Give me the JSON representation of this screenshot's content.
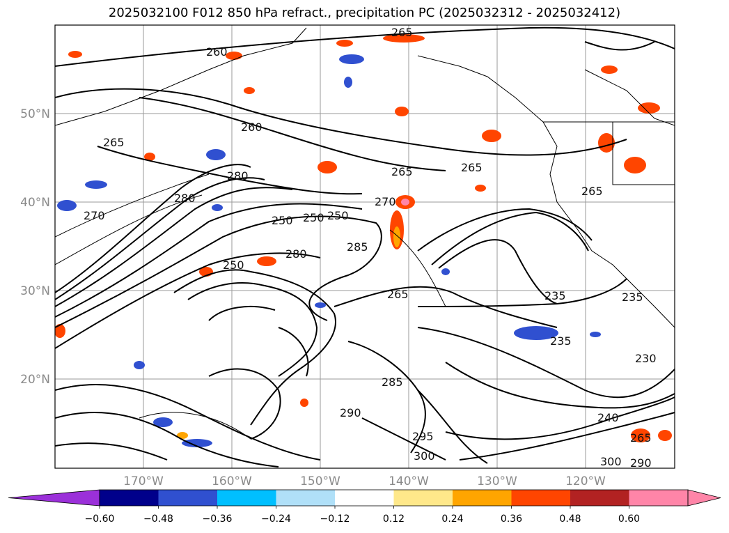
{
  "title": "2025032100 F012 850 hPa refract., precipitation PC (2025032312 - 2025032412)",
  "map": {
    "lat_ticks": [
      "50°N",
      "40°N",
      "30°N",
      "20°N"
    ],
    "lon_ticks": [
      "170°W",
      "160°W",
      "150°W",
      "140°W",
      "130°W",
      "120°W"
    ],
    "contour_labels": [
      "260",
      "265",
      "260",
      "265",
      "250",
      "280",
      "280",
      "270",
      "250",
      "250",
      "270",
      "285",
      "265",
      "265",
      "265",
      "235",
      "235",
      "285",
      "290",
      "295",
      "300",
      "240",
      "265",
      "230",
      "290",
      "300",
      "250",
      "235",
      "265",
      "280"
    ]
  },
  "colorbar": {
    "ticks": [
      "−0.60",
      "−0.48",
      "−0.36",
      "−0.24",
      "−0.12",
      "0.12",
      "0.24",
      "0.36",
      "0.48",
      "0.60"
    ],
    "colors": [
      "#9b30d9",
      "#00008b",
      "#3050d0",
      "#00bfff",
      "#b0e0f8",
      "#ffffff",
      "#ffe88a",
      "#ffa500",
      "#ff4500",
      "#b22222",
      "#ff85a8",
      "#ff85a8"
    ]
  }
}
